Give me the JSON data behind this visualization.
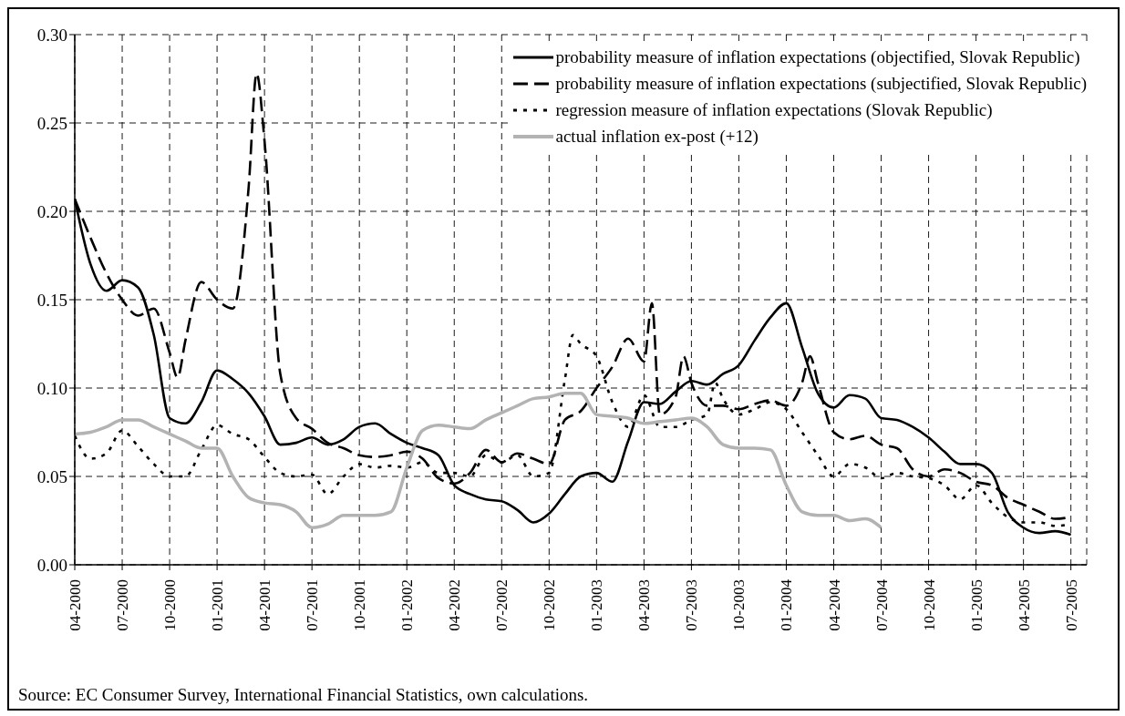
{
  "chart_data": {
    "type": "line",
    "x": [
      "2000-04",
      "2000-05",
      "2000-06",
      "2000-07",
      "2000-08",
      "2000-09",
      "2000-10",
      "2000-11",
      "2000-12",
      "2001-01",
      "2001-02",
      "2001-03",
      "2001-04",
      "2001-05",
      "2001-06",
      "2001-07",
      "2001-08",
      "2001-09",
      "2001-10",
      "2001-11",
      "2001-12",
      "2002-01",
      "2002-02",
      "2002-03",
      "2002-04",
      "2002-05",
      "2002-06",
      "2002-07",
      "2002-08",
      "2002-09",
      "2002-10",
      "2002-11",
      "2002-12",
      "2003-01",
      "2003-02",
      "2003-03",
      "2003-04",
      "2003-05",
      "2003-06",
      "2003-07",
      "2003-08",
      "2003-09",
      "2003-10",
      "2003-11",
      "2003-12",
      "2004-01",
      "2004-02",
      "2004-03",
      "2004-04",
      "2004-05",
      "2004-06",
      "2004-07",
      "2004-08",
      "2004-09",
      "2004-10",
      "2004-11",
      "2004-12",
      "2005-01",
      "2005-02",
      "2005-03",
      "2005-04",
      "2005-05",
      "2005-06",
      "2005-07"
    ],
    "series": [
      {
        "name": "probability measure of inflation expectations (objectified, Slovak Republic)",
        "color": "#000000",
        "line_style": "solid",
        "values": [
          0.207,
          0.17,
          0.155,
          0.161,
          0.157,
          0.13,
          0.083,
          0.08,
          0.092,
          0.11,
          0.105,
          0.097,
          0.084,
          0.068,
          0.069,
          0.072,
          0.068,
          0.071,
          0.078,
          0.08,
          0.074,
          0.069,
          0.066,
          0.062,
          0.045,
          0.04,
          0.037,
          0.036,
          0.031,
          0.024,
          0.029,
          0.04,
          0.05,
          0.052,
          0.047,
          0.07,
          0.092,
          0.091,
          0.098,
          0.104,
          0.102,
          0.108,
          0.113,
          0.127,
          0.14,
          0.148,
          0.123,
          0.097,
          0.089,
          0.096,
          0.094,
          0.083,
          0.082,
          0.078,
          0.072,
          0.064,
          0.057,
          0.057,
          0.052,
          0.03,
          0.021,
          0.018,
          0.019,
          0.017
        ]
      },
      {
        "name": "probability measure of inflation expectations (subjectified, Slovak Republic)",
        "color": "#000000",
        "line_style": "dashed",
        "x": [
          "2000-04",
          "2000-05",
          "2000-06",
          "2000-07",
          "2000-08",
          "2000-09",
          "2000-10",
          "2000-10-16",
          "2000-11",
          "2000-12",
          "2001-01",
          "2001-02",
          "2001-03",
          "2001-03-16",
          "2001-04",
          "2001-05",
          "2001-06",
          "2001-07",
          "2001-08",
          "2001-09",
          "2001-10",
          "2001-11",
          "2001-12",
          "2002-01",
          "2002-02",
          "2002-03",
          "2002-04",
          "2002-05",
          "2002-06",
          "2002-07",
          "2002-08",
          "2002-09",
          "2002-10",
          "2002-11",
          "2002-12",
          "2003-01",
          "2003-02",
          "2003-03",
          "2003-04",
          "2003-04-16",
          "2003-05",
          "2003-06",
          "2003-06-16",
          "2003-07",
          "2003-08",
          "2003-09",
          "2003-10",
          "2003-11",
          "2003-12",
          "2004-01",
          "2004-02",
          "2004-02-16",
          "2004-03",
          "2004-04",
          "2004-05",
          "2004-06",
          "2004-07",
          "2004-08",
          "2004-09",
          "2004-10",
          "2004-11",
          "2004-12",
          "2005-01",
          "2005-02",
          "2005-03",
          "2005-04",
          "2005-05",
          "2005-06",
          "2005-07"
        ],
        "values": [
          0.207,
          0.185,
          0.165,
          0.15,
          0.141,
          0.145,
          0.12,
          0.106,
          0.127,
          0.16,
          0.15,
          0.145,
          0.214,
          0.278,
          0.24,
          0.108,
          0.083,
          0.077,
          0.069,
          0.066,
          0.062,
          0.061,
          0.062,
          0.064,
          0.06,
          0.049,
          0.046,
          0.052,
          0.065,
          0.058,
          0.063,
          0.06,
          0.057,
          0.082,
          0.087,
          0.1,
          0.112,
          0.128,
          0.115,
          0.148,
          0.085,
          0.095,
          0.118,
          0.103,
          0.09,
          0.09,
          0.088,
          0.091,
          0.093,
          0.09,
          0.103,
          0.118,
          0.103,
          0.075,
          0.071,
          0.073,
          0.068,
          0.066,
          0.054,
          0.05,
          0.054,
          0.052,
          0.047,
          0.045,
          0.038,
          0.034,
          0.03,
          0.026,
          0.027
        ]
      },
      {
        "name": "regression measure of inflation expectations (Slovak Republic)",
        "color": "#000000",
        "line_style": "dotted",
        "x": [
          "2000-04",
          "2000-05",
          "2000-06",
          "2000-07",
          "2000-08",
          "2000-09",
          "2000-10",
          "2000-11",
          "2000-12",
          "2001-01",
          "2001-02",
          "2001-03",
          "2001-04",
          "2001-05",
          "2001-06",
          "2001-07",
          "2001-08",
          "2001-09",
          "2001-10",
          "2001-11",
          "2001-12",
          "2002-01",
          "2002-02",
          "2002-03",
          "2002-04",
          "2002-05",
          "2002-06",
          "2002-07",
          "2002-08",
          "2002-09",
          "2002-10",
          "2002-11",
          "2002-11-16",
          "2002-12",
          "2003-01",
          "2003-02",
          "2003-03",
          "2003-04",
          "2003-05",
          "2003-06",
          "2003-07",
          "2003-08",
          "2003-08-16",
          "2003-09",
          "2003-10",
          "2003-11",
          "2003-12",
          "2004-01",
          "2004-02",
          "2004-03",
          "2004-04",
          "2004-05",
          "2004-06",
          "2004-07",
          "2004-08",
          "2004-09",
          "2004-10",
          "2004-11",
          "2004-12",
          "2005-01",
          "2005-02",
          "2005-03",
          "2005-04",
          "2005-05",
          "2005-06",
          "2005-07"
        ],
        "values": [
          0.073,
          0.06,
          0.063,
          0.076,
          0.067,
          0.057,
          0.05,
          0.05,
          0.065,
          0.079,
          0.074,
          0.071,
          0.061,
          0.052,
          0.05,
          0.051,
          0.04,
          0.05,
          0.057,
          0.055,
          0.056,
          0.055,
          0.058,
          0.052,
          0.052,
          0.05,
          0.062,
          0.058,
          0.062,
          0.05,
          0.052,
          0.105,
          0.13,
          0.125,
          0.118,
          0.092,
          0.078,
          0.096,
          0.078,
          0.078,
          0.082,
          0.085,
          0.103,
          0.094,
          0.085,
          0.088,
          0.092,
          0.088,
          0.075,
          0.062,
          0.05,
          0.057,
          0.055,
          0.049,
          0.052,
          0.05,
          0.049,
          0.045,
          0.037,
          0.045,
          0.035,
          0.027,
          0.024,
          0.024,
          0.022,
          0.023
        ]
      },
      {
        "name": "actual inflation ex-post (+12)",
        "color": "#b3b3b3",
        "line_style": "solid",
        "values": [
          0.074,
          0.075,
          0.078,
          0.082,
          0.082,
          0.078,
          0.074,
          0.07,
          0.066,
          0.066,
          0.05,
          0.038,
          0.035,
          0.034,
          0.03,
          0.021,
          0.023,
          0.028,
          0.028,
          0.028,
          0.03,
          0.055,
          0.076,
          0.079,
          0.078,
          0.077,
          0.082,
          0.086,
          0.09,
          0.094,
          0.095,
          0.097,
          0.097,
          0.085,
          0.084,
          0.083,
          0.08,
          0.081,
          0.082,
          0.083,
          0.078,
          0.068,
          0.066,
          0.066,
          0.065,
          0.045,
          0.03,
          0.028,
          0.028,
          0.025,
          0.026,
          0.021,
          null,
          null,
          null,
          null,
          null,
          null,
          null,
          null,
          null,
          null,
          null,
          null
        ]
      }
    ],
    "ylim": [
      0,
      0.3
    ],
    "yticks": [
      {
        "value": 0,
        "label": "0.00"
      },
      {
        "value": 0.05,
        "label": "0.05"
      },
      {
        "value": 0.1,
        "label": "0.10"
      },
      {
        "value": 0.15,
        "label": "0.15"
      },
      {
        "value": 0.2,
        "label": "0.20"
      },
      {
        "value": 0.25,
        "label": "0.25"
      },
      {
        "value": 0.3,
        "label": "0.30"
      }
    ],
    "xlim": [
      "2000-04",
      "2005-08"
    ],
    "xticks": [
      {
        "value": "2000-04",
        "label": "04-2000"
      },
      {
        "value": "2000-07",
        "label": "07-2000"
      },
      {
        "value": "2000-10",
        "label": "10-2000"
      },
      {
        "value": "2001-01",
        "label": "01-2001"
      },
      {
        "value": "2001-04",
        "label": "04-2001"
      },
      {
        "value": "2001-07",
        "label": "07-2001"
      },
      {
        "value": "2001-10",
        "label": "10-2001"
      },
      {
        "value": "2002-01",
        "label": "01-2002"
      },
      {
        "value": "2002-04",
        "label": "04-2002"
      },
      {
        "value": "2002-07",
        "label": "07-2002"
      },
      {
        "value": "2002-10",
        "label": "10-2002"
      },
      {
        "value": "2003-01",
        "label": "01-2003"
      },
      {
        "value": "2003-04",
        "label": "04-2003"
      },
      {
        "value": "2003-07",
        "label": "07-2003"
      },
      {
        "value": "2003-10",
        "label": "10-2003"
      },
      {
        "value": "2004-01",
        "label": "01-2004"
      },
      {
        "value": "2004-04",
        "label": "04-2004"
      },
      {
        "value": "2004-07",
        "label": "07-2004"
      },
      {
        "value": "2004-10",
        "label": "10-2004"
      },
      {
        "value": "2005-01",
        "label": "01-2005"
      },
      {
        "value": "2005-04",
        "label": "04-2005"
      },
      {
        "value": "2005-07",
        "label": "07-2005"
      }
    ],
    "grid": true,
    "legend": "top right",
    "annotations": [
      "Source: EC Consumer Survey, International Financial Statistics, own calculations."
    ]
  }
}
